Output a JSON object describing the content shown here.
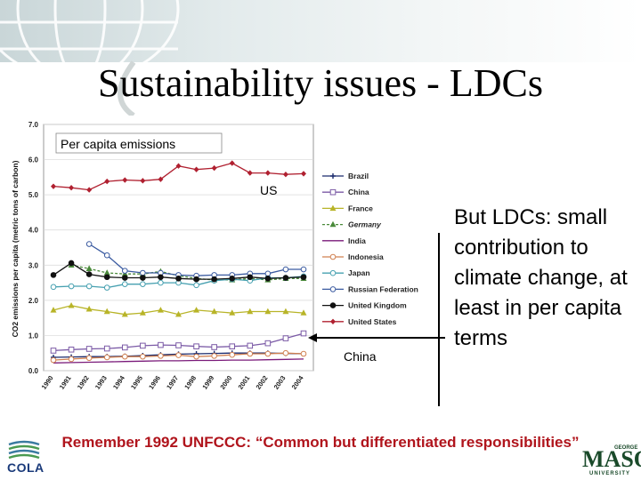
{
  "slide": {
    "title": "Sustainability issues - LDCs",
    "callout": "But LDCs: small contribution to climate change, at least in per capita terms",
    "footer": "Remember 1992 UNFCCC: “Common but differentiated responsibilities”",
    "logo_left": "COLA",
    "logo_right": "MASON",
    "logo_right_top": "GEORGE",
    "logo_right_bottom": "UNIVERSITY"
  },
  "chart_data": {
    "type": "line",
    "ylabel": "CO2 emissions per capita (metric tons of carbon)",
    "ylim": [
      0,
      7
    ],
    "yticks": [
      "0.0",
      "1.0",
      "2.0",
      "3.0",
      "4.0",
      "5.0",
      "6.0",
      "7.0"
    ],
    "x": [
      "1990",
      "1991",
      "1992",
      "1993",
      "1994",
      "1995",
      "1996",
      "1997",
      "1998",
      "1999",
      "2000",
      "2001",
      "2002",
      "2003",
      "2004"
    ],
    "annotations": [
      {
        "text": "Per capita emissions"
      },
      {
        "text": "US"
      },
      {
        "text": "China"
      }
    ],
    "series": [
      {
        "name": "Brazil",
        "color": "#1a2a6c",
        "marker": "plus",
        "values": [
          0.38,
          0.39,
          0.4,
          0.4,
          0.41,
          0.43,
          0.45,
          0.47,
          0.48,
          0.49,
          0.5,
          0.5,
          0.5,
          0.49,
          0.48
        ]
      },
      {
        "name": "China",
        "color": "#7b5aa6",
        "marker": "square",
        "values": [
          0.57,
          0.6,
          0.62,
          0.63,
          0.66,
          0.71,
          0.73,
          0.72,
          0.69,
          0.67,
          0.69,
          0.71,
          0.78,
          0.92,
          1.06
        ]
      },
      {
        "name": "France",
        "color": "#b8b428",
        "marker": "triangle",
        "values": [
          1.72,
          1.85,
          1.75,
          1.68,
          1.6,
          1.64,
          1.72,
          1.6,
          1.72,
          1.68,
          1.64,
          1.68,
          1.68,
          1.68,
          1.64
        ]
      },
      {
        "name": "Germany",
        "color": "#4a8a3a",
        "marker": "triangle",
        "dashed": true,
        "values": [
          null,
          3.0,
          2.9,
          2.78,
          2.75,
          2.75,
          2.82,
          2.7,
          2.62,
          2.58,
          2.58,
          2.62,
          2.58,
          2.62,
          2.62
        ]
      },
      {
        "name": "India",
        "color": "#7a1a7a",
        "marker": "none",
        "values": [
          0.22,
          0.23,
          0.24,
          0.25,
          0.26,
          0.27,
          0.28,
          0.28,
          0.29,
          0.29,
          0.3,
          0.3,
          0.31,
          0.32,
          0.33
        ]
      },
      {
        "name": "Indonesia",
        "color": "#d08050",
        "marker": "circle",
        "values": [
          0.3,
          0.33,
          0.36,
          0.38,
          0.4,
          0.4,
          0.42,
          0.44,
          0.4,
          0.42,
          0.45,
          0.48,
          0.48,
          0.5,
          0.48
        ]
      },
      {
        "name": "Japan",
        "color": "#46a0b0",
        "marker": "circle",
        "values": [
          2.38,
          2.4,
          2.4,
          2.36,
          2.46,
          2.46,
          2.5,
          2.5,
          2.43,
          2.56,
          2.6,
          2.56,
          2.64,
          2.64,
          2.68
        ]
      },
      {
        "name": "Russian Federation",
        "color": "#3a5aa0",
        "marker": "circle",
        "values": [
          null,
          null,
          3.6,
          3.28,
          2.84,
          2.78,
          2.78,
          2.72,
          2.7,
          2.72,
          2.72,
          2.76,
          2.76,
          2.88,
          2.88
        ]
      },
      {
        "name": "United Kingdom",
        "color": "#111111",
        "marker": "circle",
        "values": [
          2.72,
          3.06,
          2.74,
          2.66,
          2.64,
          2.64,
          2.66,
          2.62,
          2.6,
          2.6,
          2.62,
          2.66,
          2.62,
          2.64,
          2.66
        ]
      },
      {
        "name": "United States",
        "color": "#b02030",
        "marker": "diamond",
        "values": [
          5.24,
          5.2,
          5.14,
          5.38,
          5.42,
          5.4,
          5.44,
          5.82,
          5.72,
          5.76,
          5.9,
          5.62,
          5.62,
          5.58,
          5.6
        ]
      }
    ]
  }
}
